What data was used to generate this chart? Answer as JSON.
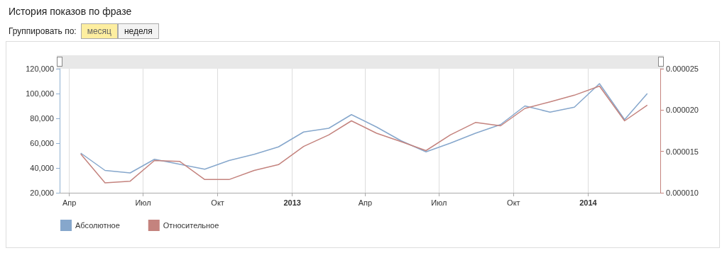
{
  "chart_data": {
    "type": "line",
    "title": "История показов по фразе",
    "annotations": [
      "Группировать по:",
      "месяц",
      "неделя"
    ],
    "x": [
      "2012-04-15",
      "2012-05-15",
      "2012-06-15",
      "2012-07-15",
      "2012-08-15",
      "2012-09-15",
      "2012-10-15",
      "2012-11-15",
      "2012-12-15",
      "2013-01-15",
      "2013-02-15",
      "2013-03-15",
      "2013-04-15",
      "2013-05-15",
      "2013-06-15",
      "2013-07-15",
      "2013-08-15",
      "2013-09-15",
      "2013-10-15",
      "2013-11-15",
      "2013-12-15",
      "2014-01-15",
      "2014-02-15",
      "2014-03-15"
    ],
    "series": [
      {
        "name": "Абсолютное",
        "color": "#86a7cc",
        "values": [
          52000,
          38000,
          36000,
          47000,
          43000,
          39000,
          46000,
          51000,
          57000,
          69000,
          72000,
          83000,
          73000,
          62000,
          53000,
          60000,
          68000,
          75000,
          90000,
          85000,
          89000,
          108000,
          79000,
          100000
        ]
      },
      {
        "name": "Относительное",
        "color": "#c4837e",
        "axis": "y2",
        "values": [
          1.47e-05,
          1.12e-05,
          1.14e-05,
          1.39e-05,
          1.38e-05,
          1.16e-05,
          1.16e-05,
          1.27e-05,
          1.34e-05,
          1.56e-05,
          1.7e-05,
          1.87e-05,
          1.72e-05,
          1.62e-05,
          1.51e-05,
          1.7e-05,
          1.85e-05,
          1.81e-05,
          2.02e-05,
          2.1e-05,
          2.18e-05,
          2.29e-05,
          1.87e-05,
          2.06e-05
        ]
      }
    ],
    "xlim": [
      "2012-03-20",
      "2014-03-31"
    ],
    "xticks": [
      {
        "value": "2012-04-01",
        "label": "Апр"
      },
      {
        "value": "2012-07-01",
        "label": "Июл"
      },
      {
        "value": "2012-10-01",
        "label": "Окт"
      },
      {
        "value": "2013-01-01",
        "label": "2013"
      },
      {
        "value": "2013-04-01",
        "label": "Апр"
      },
      {
        "value": "2013-07-01",
        "label": "Июл"
      },
      {
        "value": "2013-10-01",
        "label": "Окт"
      },
      {
        "value": "2014-01-01",
        "label": "2014"
      }
    ],
    "ylim": [
      20000,
      120000
    ],
    "yticks": [
      {
        "value": 20000,
        "label": "20,000"
      },
      {
        "value": 40000,
        "label": "40,000"
      },
      {
        "value": 60000,
        "label": "60,000"
      },
      {
        "value": 80000,
        "label": "80,000"
      },
      {
        "value": 100000,
        "label": "100,000"
      },
      {
        "value": 120000,
        "label": "120,000"
      }
    ],
    "y2lim": [
      1e-05,
      2.5e-05
    ],
    "y2ticks": [
      {
        "value": 1e-05,
        "label": "0.000010"
      },
      {
        "value": 1.5e-05,
        "label": "0.000015"
      },
      {
        "value": 2e-05,
        "label": "0.000020"
      },
      {
        "value": 2.5e-05,
        "label": "0.000025"
      }
    ],
    "grid": "x",
    "legend": "bottom left",
    "marker": "none",
    "line_style": "solid"
  }
}
